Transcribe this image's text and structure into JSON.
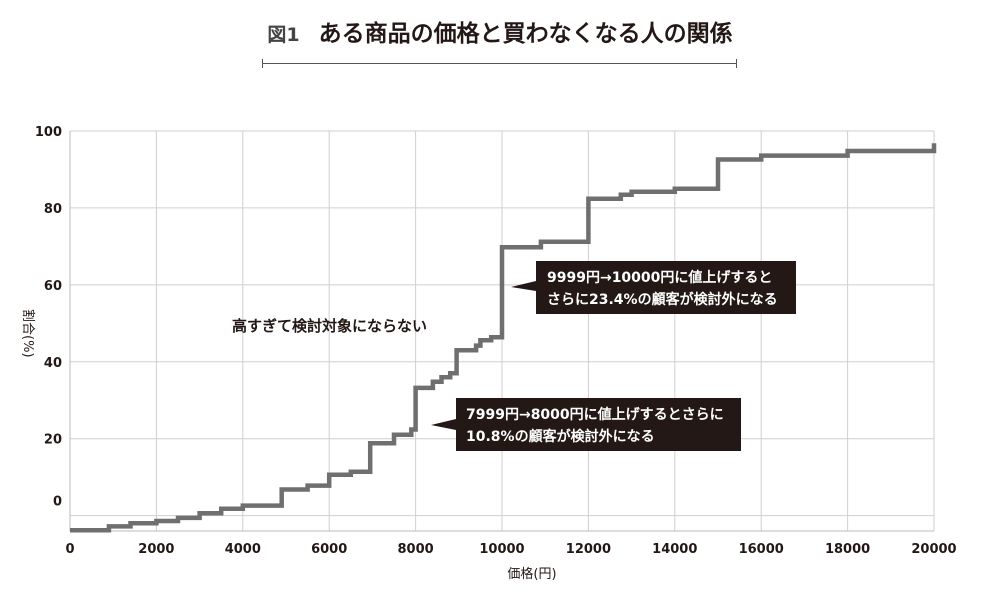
{
  "header": {
    "fig_label": "図1",
    "title": "ある商品の価格と買わなくなる人の関係"
  },
  "colors": {
    "line": "#6f6f6f",
    "grid": "#cfcfcf",
    "callout_bg": "#231815",
    "text": "#231815"
  },
  "chart_data": {
    "type": "line",
    "step": true,
    "xlabel": "価格(円)",
    "ylabel": "割合(%)",
    "xlim": [
      0,
      20000
    ],
    "ylim": [
      -4,
      100
    ],
    "xticks": [
      0,
      2000,
      4000,
      6000,
      8000,
      10000,
      12000,
      14000,
      16000,
      18000,
      20000
    ],
    "yticks": [
      0,
      20,
      40,
      60,
      80,
      100
    ],
    "xtick_labels": [
      "0",
      "2000",
      "4000",
      "6000",
      "8000",
      "10000",
      "12000",
      "14000",
      "16000",
      "18000",
      "20000"
    ],
    "ytick_labels": [
      "0",
      "20",
      "40",
      "60",
      "80",
      "100"
    ],
    "grid": true,
    "series": [
      {
        "points": [
          [
            0,
            -3.8
          ],
          [
            900,
            -3.8
          ],
          [
            900,
            -2.8
          ],
          [
            1400,
            -2.8
          ],
          [
            1400,
            -2.0
          ],
          [
            2000,
            -2.0
          ],
          [
            2000,
            -1.4
          ],
          [
            2500,
            -1.4
          ],
          [
            2500,
            -0.6
          ],
          [
            3000,
            -0.6
          ],
          [
            3000,
            0.6
          ],
          [
            3500,
            0.6
          ],
          [
            3500,
            1.8
          ],
          [
            4000,
            1.8
          ],
          [
            4000,
            2.6
          ],
          [
            4900,
            2.6
          ],
          [
            4900,
            6.8
          ],
          [
            5500,
            6.8
          ],
          [
            5500,
            7.8
          ],
          [
            6000,
            7.8
          ],
          [
            6000,
            10.6
          ],
          [
            6500,
            10.6
          ],
          [
            6500,
            11.4
          ],
          [
            6950,
            11.4
          ],
          [
            6950,
            18.8
          ],
          [
            7500,
            18.8
          ],
          [
            7500,
            21.0
          ],
          [
            7900,
            21.0
          ],
          [
            7900,
            22.4
          ],
          [
            8000,
            22.4
          ],
          [
            8000,
            33.2
          ],
          [
            8400,
            33.2
          ],
          [
            8400,
            34.8
          ],
          [
            8600,
            34.8
          ],
          [
            8600,
            36.0
          ],
          [
            8800,
            36.0
          ],
          [
            8800,
            37.0
          ],
          [
            8950,
            37.0
          ],
          [
            8950,
            43.0
          ],
          [
            9400,
            43.0
          ],
          [
            9400,
            44.2
          ],
          [
            9500,
            44.2
          ],
          [
            9500,
            45.6
          ],
          [
            9750,
            45.6
          ],
          [
            9750,
            46.4
          ],
          [
            10000,
            46.4
          ],
          [
            10000,
            69.8
          ],
          [
            10900,
            69.8
          ],
          [
            10900,
            71.2
          ],
          [
            12000,
            71.2
          ],
          [
            12000,
            82.4
          ],
          [
            12750,
            82.4
          ],
          [
            12750,
            83.4
          ],
          [
            13000,
            83.4
          ],
          [
            13000,
            84.2
          ],
          [
            14000,
            84.2
          ],
          [
            14000,
            85.0
          ],
          [
            15000,
            85.0
          ],
          [
            15000,
            92.6
          ],
          [
            16000,
            92.6
          ],
          [
            16000,
            93.6
          ],
          [
            18000,
            93.6
          ],
          [
            18000,
            94.8
          ],
          [
            20000,
            94.8
          ],
          [
            20000,
            96.8
          ]
        ]
      }
    ],
    "annotations": [
      {
        "id": "plain",
        "text": "高すぎて検討対象にならない"
      },
      {
        "id": "callout_10000",
        "lines": [
          "9999円→10000円に値上げすると",
          "さらに23.4%の顧客が検討外になる"
        ]
      },
      {
        "id": "callout_8000",
        "lines": [
          "7999円→8000円に値上げするとさらに",
          "10.8%の顧客が検討外になる"
        ]
      }
    ]
  }
}
